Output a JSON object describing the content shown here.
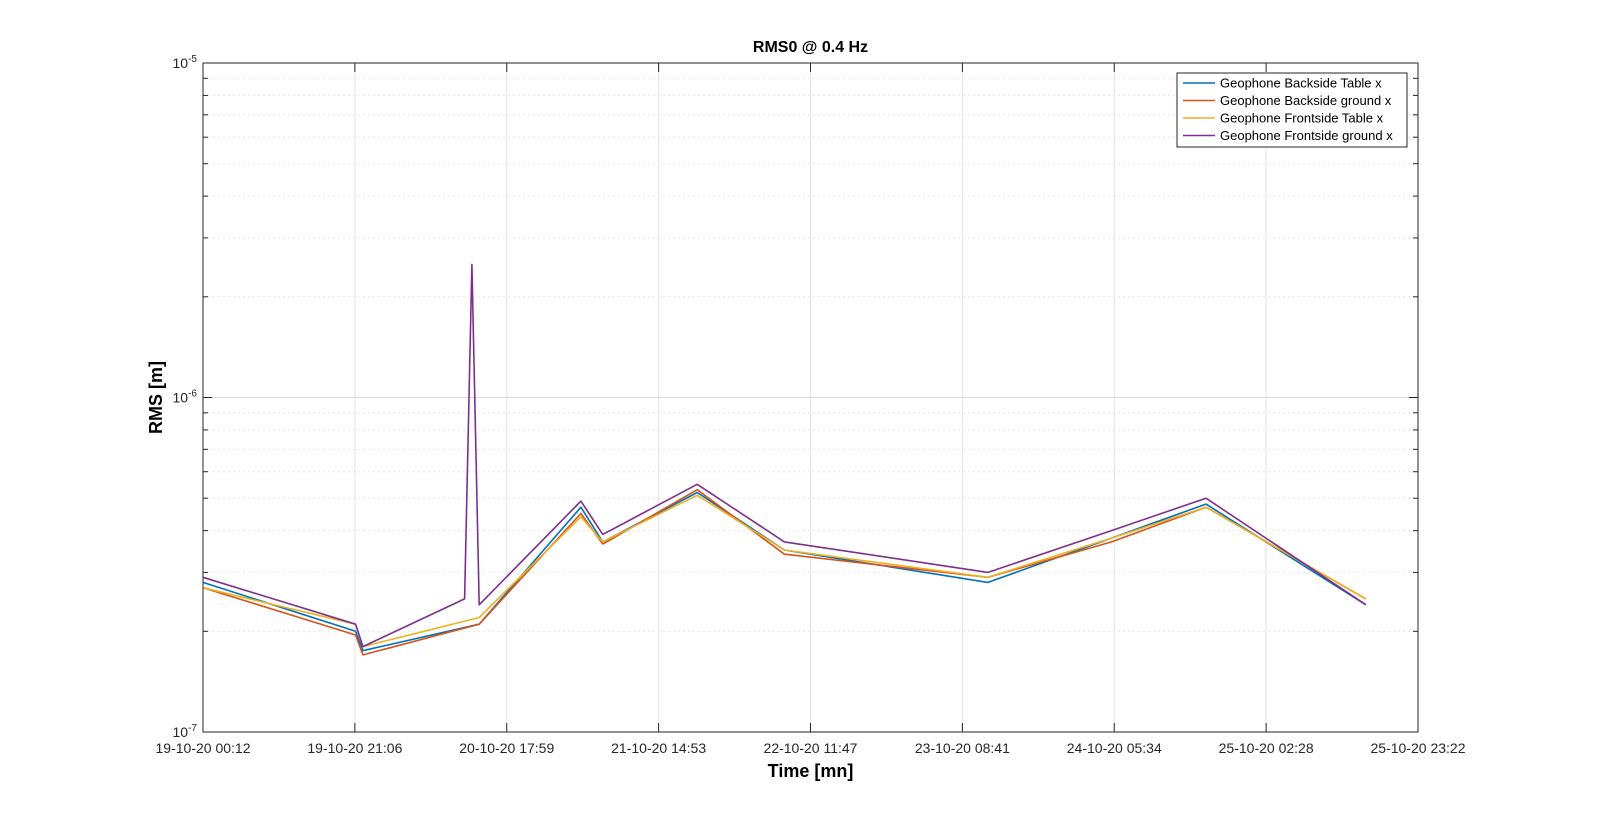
{
  "chart_data": {
    "type": "line",
    "title": "RMS0 @ 0.4 Hz",
    "xlabel": "Time [mn]",
    "ylabel": "RMS [m]",
    "yscale": "log",
    "ylim": [
      1e-07,
      1e-05
    ],
    "ytick_labels": [
      {
        "base": "10",
        "exp": "-7",
        "value": 1e-07
      },
      {
        "base": "10",
        "exp": "-6",
        "value": 1e-06
      },
      {
        "base": "10",
        "exp": "-5",
        "value": 1e-05
      }
    ],
    "xticks": [
      "19-10-20 00:12",
      "19-10-20 21:06",
      "20-10-20 17:59",
      "21-10-20 14:53",
      "22-10-20 11:47",
      "23-10-20 08:41",
      "24-10-20 05:34",
      "25-10-20 02:28",
      "25-10-20 23:22"
    ],
    "xlim": [
      "19-10-20 00:12",
      "25-10-20 23:22"
    ],
    "grid": true,
    "legend_position": "top-right",
    "series": [
      {
        "name": "Geophone Backside Table x",
        "color": "#0072BD",
        "x_unit": "hours after 19-10-20 00:12",
        "x": [
          0,
          21,
          22,
          38,
          52,
          55,
          56,
          68,
          80,
          108,
          125,
          138,
          160
        ],
        "y": [
          2.8e-07,
          2e-07,
          1.75e-07,
          2.1e-07,
          4.7e-07,
          3.7e-07,
          3.8e-07,
          5.2e-07,
          3.5e-07,
          2.8e-07,
          3.8e-07,
          4.8e-07,
          2.4e-07
        ]
      },
      {
        "name": "Geophone Backside ground x",
        "color": "#D95319",
        "x_unit": "hours after 19-10-20 00:12",
        "x": [
          0,
          21,
          22,
          38,
          52,
          55,
          56,
          68,
          80,
          108,
          125,
          138,
          160
        ],
        "y": [
          2.7e-07,
          1.95e-07,
          1.7e-07,
          2.1e-07,
          4.5e-07,
          3.65e-07,
          3.75e-07,
          5.3e-07,
          3.4e-07,
          2.9e-07,
          3.7e-07,
          4.7e-07,
          2.5e-07
        ]
      },
      {
        "name": "Geophone Frontside Table x",
        "color": "#EDB120",
        "x_unit": "hours after 19-10-20 00:12",
        "x": [
          0,
          21,
          22,
          38,
          52,
          55,
          56,
          68,
          80,
          108,
          125,
          138,
          160
        ],
        "y": [
          2.7e-07,
          2.1e-07,
          1.8e-07,
          2.2e-07,
          4.4e-07,
          3.7e-07,
          3.8e-07,
          5.1e-07,
          3.5e-07,
          2.9e-07,
          3.8e-07,
          4.7e-07,
          2.5e-07
        ]
      },
      {
        "name": "Geophone Frontside ground x",
        "color": "#7E2F8E",
        "x_unit": "hours after 19-10-20 00:12",
        "x": [
          0,
          21,
          22,
          36,
          37,
          38,
          52,
          55,
          56,
          68,
          80,
          108,
          125,
          138,
          160
        ],
        "y": [
          2.9e-07,
          2.1e-07,
          1.8e-07,
          2.5e-07,
          2.5e-06,
          2.4e-07,
          4.9e-07,
          3.9e-07,
          4e-07,
          5.5e-07,
          3.7e-07,
          3e-07,
          4e-07,
          5e-07,
          2.4e-07
        ]
      }
    ]
  }
}
